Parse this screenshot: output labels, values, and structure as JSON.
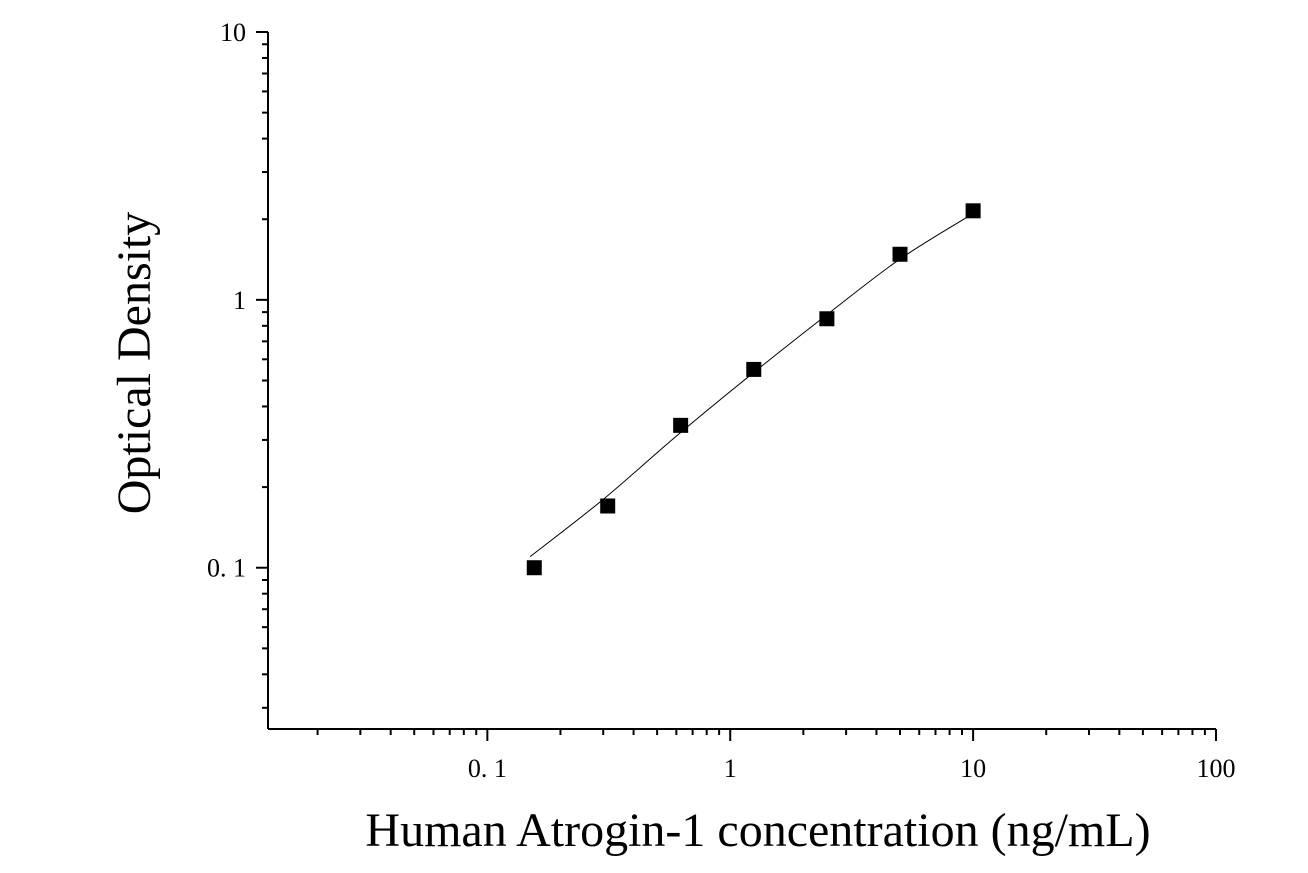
{
  "chart_data": {
    "type": "scatter",
    "title": "",
    "xlabel": "Human Atrogin-1 concentration (ng/mL)",
    "ylabel": "Optical Density",
    "x_scale": "log",
    "y_scale": "log",
    "xlim": [
      0.0125,
      100
    ],
    "ylim": [
      0.025,
      10
    ],
    "x_ticks": [
      {
        "value": 0.1,
        "label": "0. 1"
      },
      {
        "value": 1,
        "label": "1"
      },
      {
        "value": 10,
        "label": "10"
      },
      {
        "value": 100,
        "label": "100"
      }
    ],
    "y_ticks": [
      {
        "value": 0.1,
        "label": "0. 1"
      },
      {
        "value": 1,
        "label": "1"
      },
      {
        "value": 10,
        "label": "10"
      }
    ],
    "grid": false,
    "legend": "none",
    "series": [
      {
        "marker": "square",
        "color": "#000000",
        "x": [
          0.156,
          0.313,
          0.625,
          1.25,
          2.5,
          5,
          10
        ],
        "y": [
          0.1,
          0.17,
          0.34,
          0.55,
          0.85,
          1.48,
          2.15
        ]
      }
    ],
    "fit_curve": {
      "color": "#000000",
      "x": [
        0.15,
        0.3,
        0.6,
        1.2,
        2.5,
        5,
        10
      ],
      "y": [
        0.11,
        0.18,
        0.31,
        0.52,
        0.88,
        1.42,
        2.1
      ]
    }
  }
}
